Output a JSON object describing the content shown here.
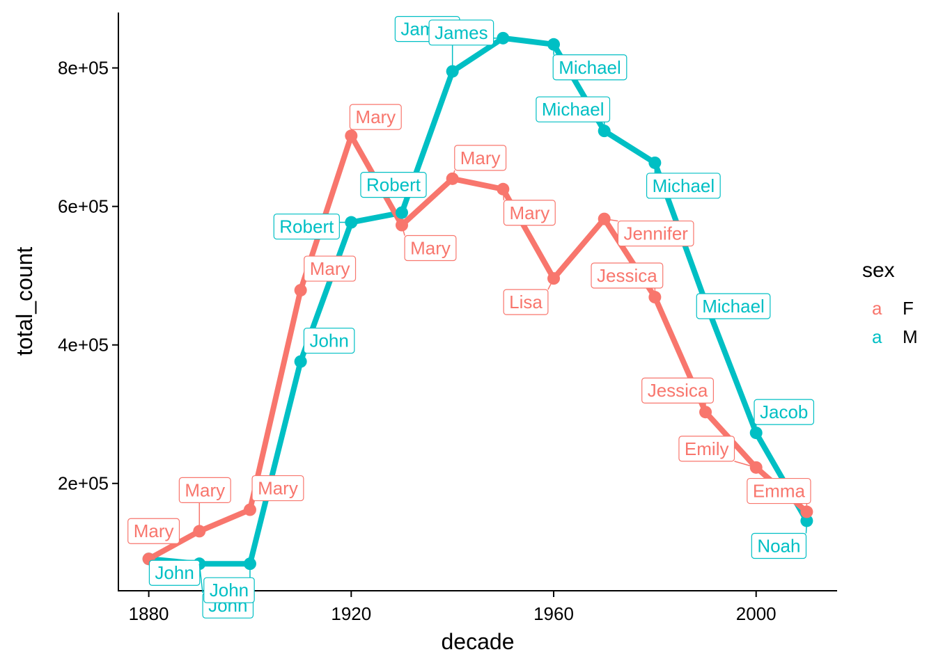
{
  "chart_data": {
    "type": "line",
    "xlabel": "decade",
    "ylabel": "total_count",
    "xlim": [
      1874,
      2016
    ],
    "ylim": [
      45000,
      880000
    ],
    "x_ticks": [
      1880,
      1920,
      1960,
      2000
    ],
    "y_ticks": [
      200000,
      400000,
      600000,
      800000
    ],
    "y_tick_labels": [
      "2e+05",
      "4e+05",
      "6e+05",
      "8e+05"
    ],
    "x_tick_labels": [
      "1880",
      "1920",
      "1960",
      "2000"
    ],
    "grid": false,
    "legend": {
      "title": "sex",
      "placement": "right",
      "key_glyph": "a",
      "entries": [
        {
          "key": "a",
          "label": "F",
          "color": "#F8766D"
        },
        {
          "key": "a",
          "label": "M",
          "color": "#00BFC4"
        }
      ]
    },
    "series": [
      {
        "name": "F",
        "color": "#F8766D",
        "points": [
          {
            "x": 1880,
            "y": 91000,
            "label": "Mary"
          },
          {
            "x": 1890,
            "y": 131000,
            "label": "Mary"
          },
          {
            "x": 1900,
            "y": 162000,
            "label": "Mary"
          },
          {
            "x": 1910,
            "y": 479000,
            "label": "Mary"
          },
          {
            "x": 1920,
            "y": 702000,
            "label": "Mary"
          },
          {
            "x": 1930,
            "y": 573000,
            "label": "Mary"
          },
          {
            "x": 1940,
            "y": 640000,
            "label": "Mary"
          },
          {
            "x": 1950,
            "y": 625000,
            "label": "Mary"
          },
          {
            "x": 1960,
            "y": 496000,
            "label": "Lisa"
          },
          {
            "x": 1970,
            "y": 582000,
            "label": "Jennifer"
          },
          {
            "x": 1980,
            "y": 469000,
            "label": "Jessica"
          },
          {
            "x": 1990,
            "y": 303000,
            "label": "Jessica"
          },
          {
            "x": 2000,
            "y": 223000,
            "label": "Emily"
          },
          {
            "x": 2010,
            "y": 159000,
            "label": "Emma"
          }
        ]
      },
      {
        "name": "M",
        "color": "#00BFC4",
        "points": [
          {
            "x": 1880,
            "y": 91000,
            "label": "John"
          },
          {
            "x": 1890,
            "y": 84000,
            "label": "John"
          },
          {
            "x": 1900,
            "y": 84000,
            "label": "John"
          },
          {
            "x": 1910,
            "y": 376000,
            "label": "John"
          },
          {
            "x": 1920,
            "y": 577000,
            "label": "Robert"
          },
          {
            "x": 1930,
            "y": 591000,
            "label": "Robert"
          },
          {
            "x": 1940,
            "y": 795000,
            "label": "James"
          },
          {
            "x": 1950,
            "y": 843000,
            "label": "James"
          },
          {
            "x": 1960,
            "y": 834000,
            "label": "Michael"
          },
          {
            "x": 1970,
            "y": 709000,
            "label": "Michael"
          },
          {
            "x": 1980,
            "y": 663000,
            "label": "Michael"
          },
          {
            "x": 1990,
            "y": 462000,
            "label": "Michael"
          },
          {
            "x": 2000,
            "y": 273000,
            "label": "Jacob"
          },
          {
            "x": 2010,
            "y": 146000,
            "label": "Noah"
          }
        ]
      }
    ]
  }
}
